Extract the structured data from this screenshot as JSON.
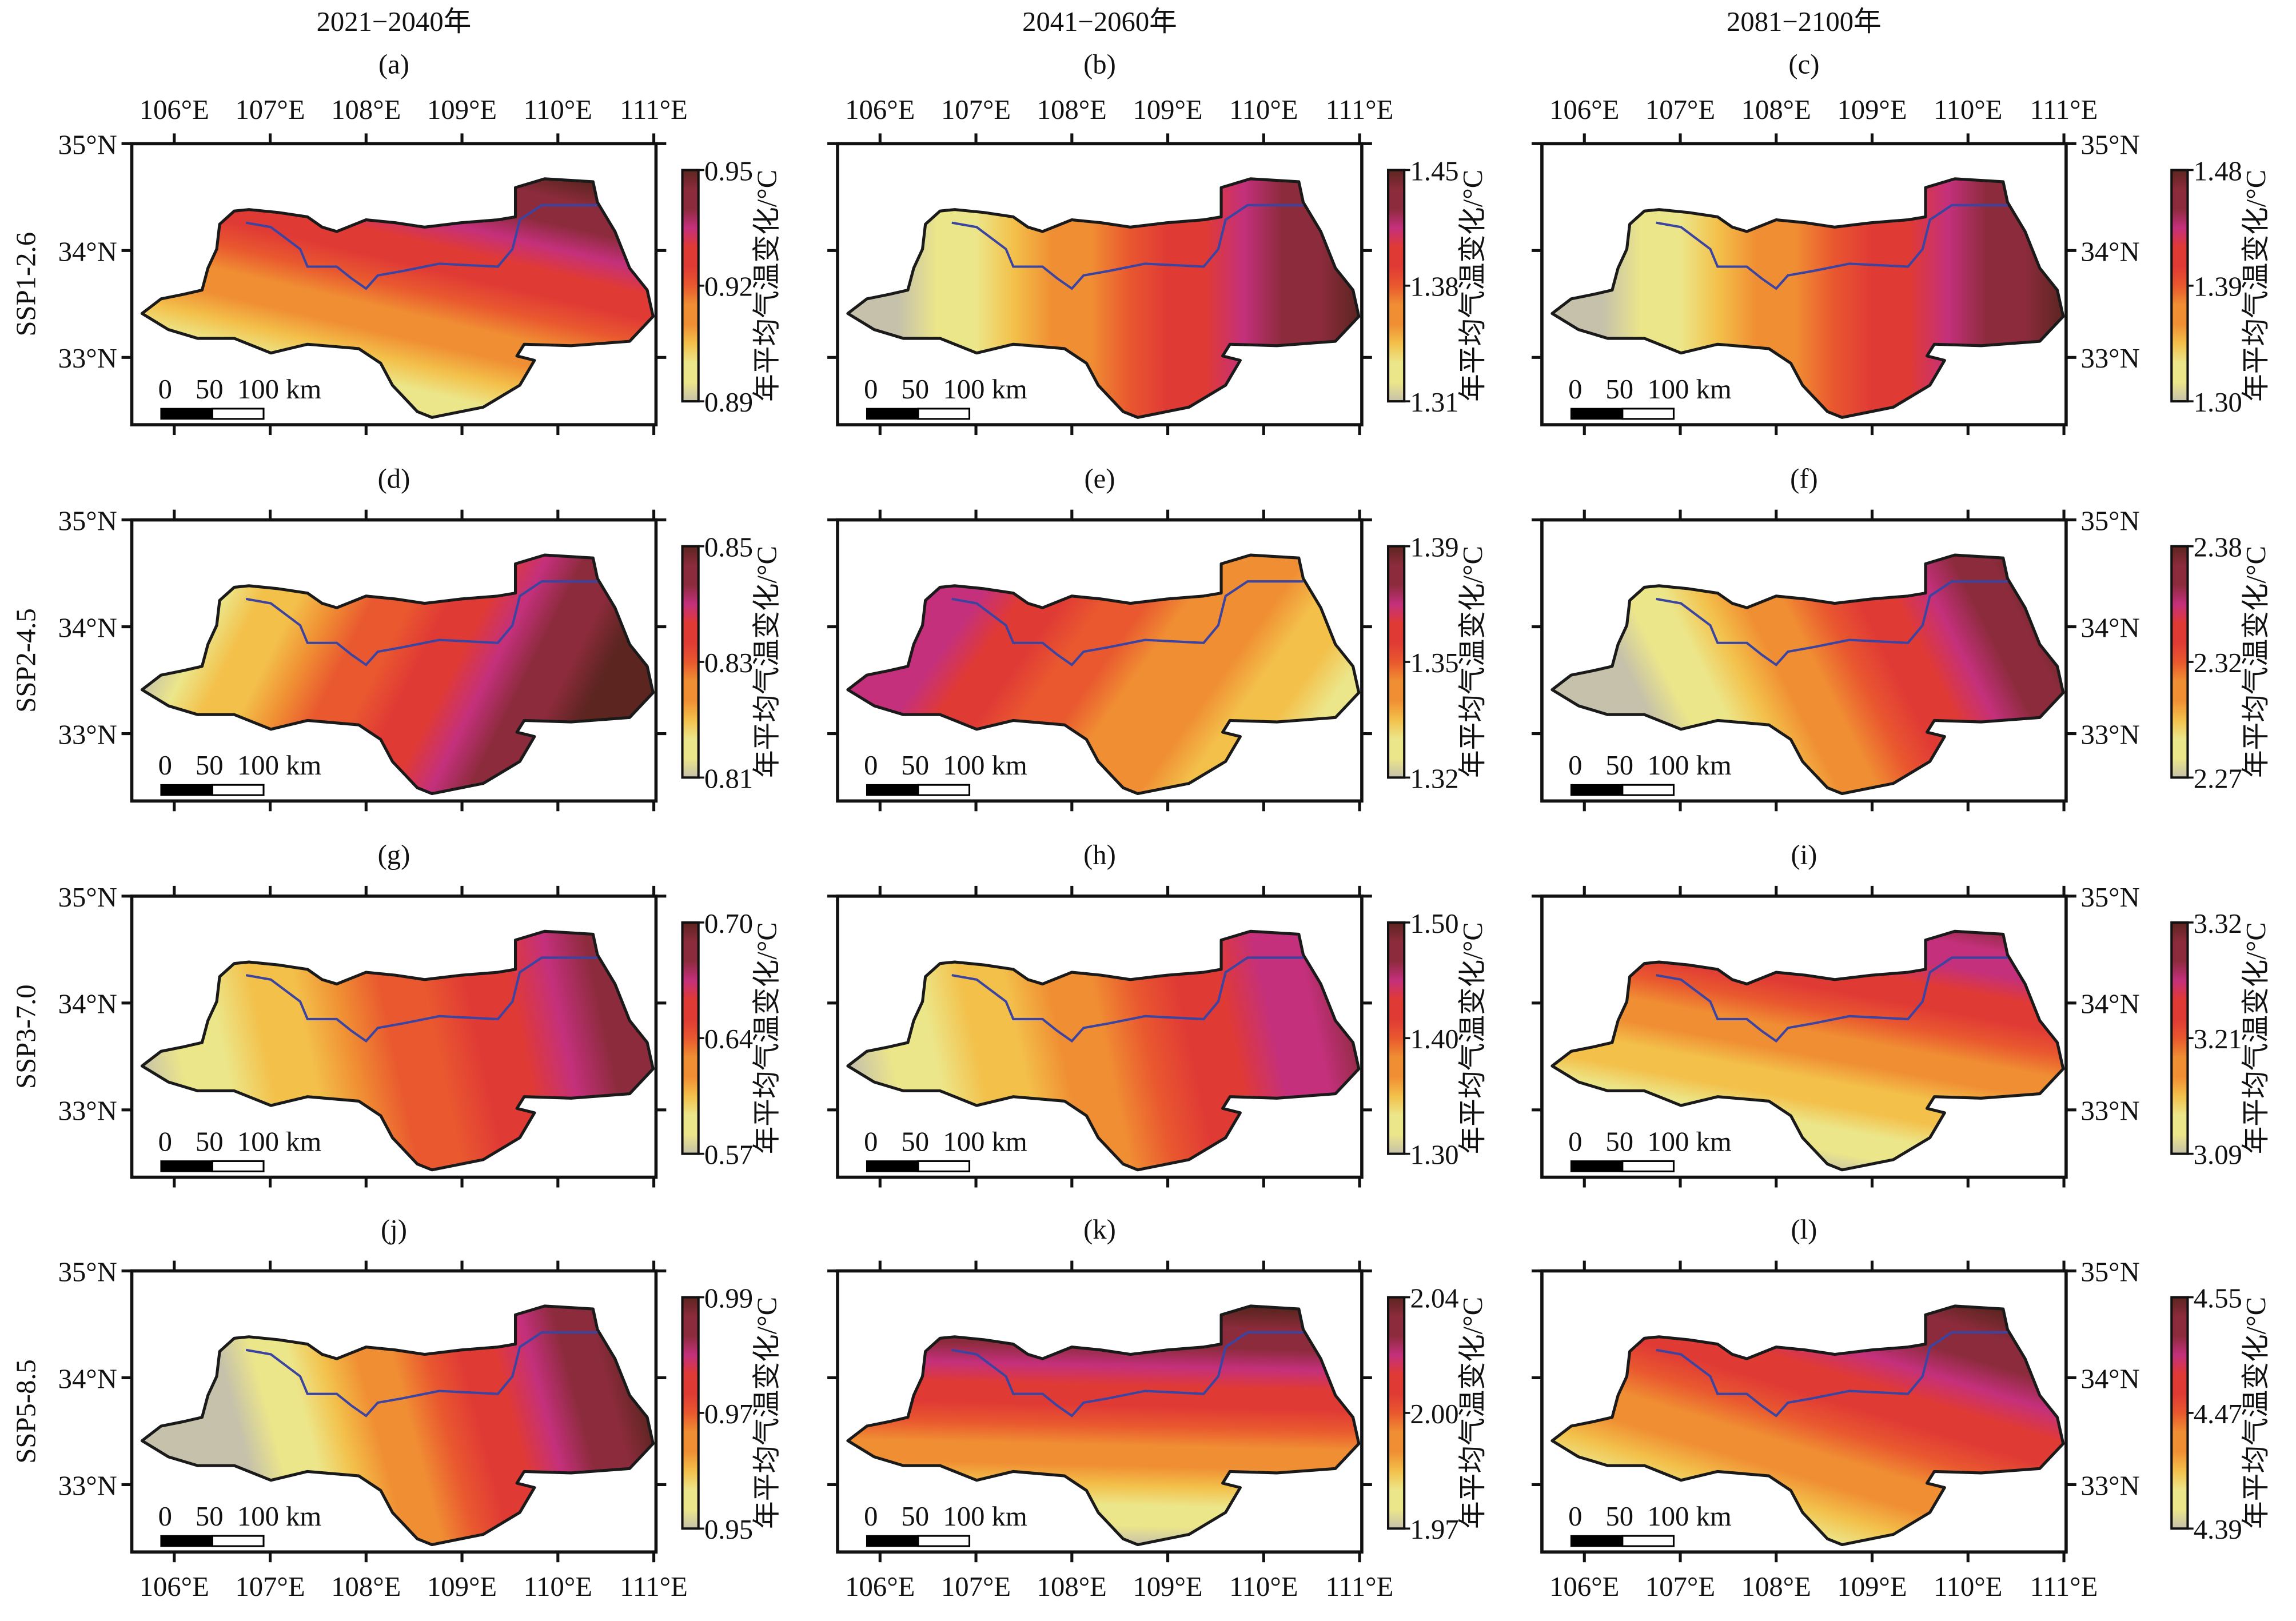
{
  "columns": [
    "2021−2040年",
    "2041−2060年",
    "2081−2100年"
  ],
  "scenarios": [
    "SSP1-2.6",
    "SSP2-4.5",
    "SSP3-7.0",
    "SSP5-8.5"
  ],
  "lon_labels": [
    "106°E",
    "107°E",
    "108°E",
    "109°E",
    "110°E",
    "111°E"
  ],
  "lat_labels": [
    "35°N",
    "34°N",
    "33°N"
  ],
  "colorbar_label": "年平均气温变化/°C",
  "scale_bar": {
    "labels": [
      "0",
      "50",
      "100 km"
    ]
  },
  "colormap": [
    "#c6c1aa",
    "#ece68a",
    "#f3c04a",
    "#f08e33",
    "#e9582f",
    "#e03a35",
    "#c4307c",
    "#8c2b3c",
    "#5c2520"
  ],
  "panels": [
    {
      "letter": "(a)",
      "ticks": [
        "0.95",
        "0.92",
        "0.89"
      ]
    },
    {
      "letter": "(b)",
      "ticks": [
        "1.45",
        "1.38",
        "1.31"
      ]
    },
    {
      "letter": "(c)",
      "ticks": [
        "1.48",
        "1.39",
        "1.30"
      ]
    },
    {
      "letter": "(d)",
      "ticks": [
        "0.85",
        "0.83",
        "0.81"
      ]
    },
    {
      "letter": "(e)",
      "ticks": [
        "1.39",
        "1.35",
        "1.32"
      ]
    },
    {
      "letter": "(f)",
      "ticks": [
        "2.38",
        "2.32",
        "2.27"
      ]
    },
    {
      "letter": "(g)",
      "ticks": [
        "0.70",
        "0.64",
        "0.57"
      ]
    },
    {
      "letter": "(h)",
      "ticks": [
        "1.50",
        "1.40",
        "1.30"
      ]
    },
    {
      "letter": "(i)",
      "ticks": [
        "3.32",
        "3.21",
        "3.09"
      ]
    },
    {
      "letter": "(j)",
      "ticks": [
        "0.99",
        "0.97",
        "0.95"
      ]
    },
    {
      "letter": "(k)",
      "ticks": [
        "2.04",
        "2.00",
        "1.97"
      ]
    },
    {
      "letter": "(l)",
      "ticks": [
        "4.55",
        "4.47",
        "4.39"
      ]
    }
  ]
}
